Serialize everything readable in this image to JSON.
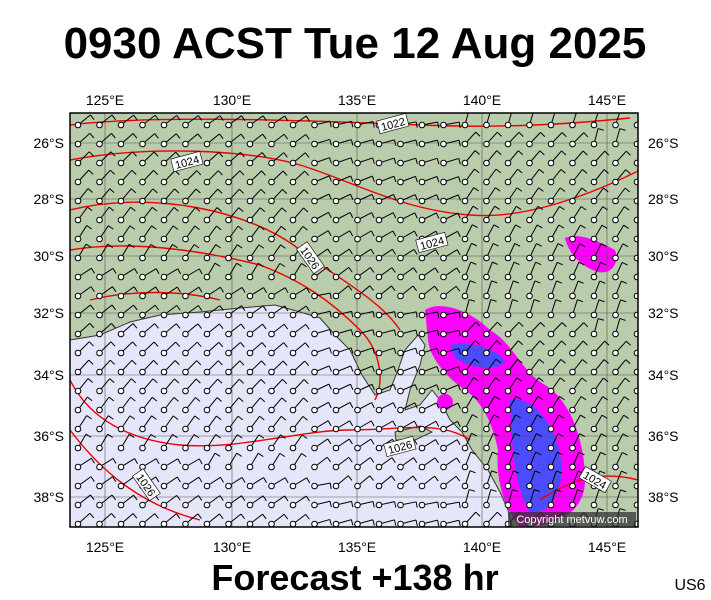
{
  "header": {
    "title": "0930 ACST Tue 12 Aug 2025"
  },
  "map": {
    "lon_labels": [
      "125°E",
      "130°E",
      "135°E",
      "140°E",
      "145°E"
    ],
    "lat_labels": [
      "26°S",
      "28°S",
      "30°S",
      "32°S",
      "34°S",
      "36°S",
      "38°S"
    ],
    "isobar_labels": [
      "1022",
      "1024",
      "1024",
      "1026",
      "1026",
      "1026",
      "1024"
    ],
    "copyright": "Copyright metvuw.com"
  },
  "footer": {
    "forecast": "Forecast +138 hr",
    "code": "US6"
  }
}
